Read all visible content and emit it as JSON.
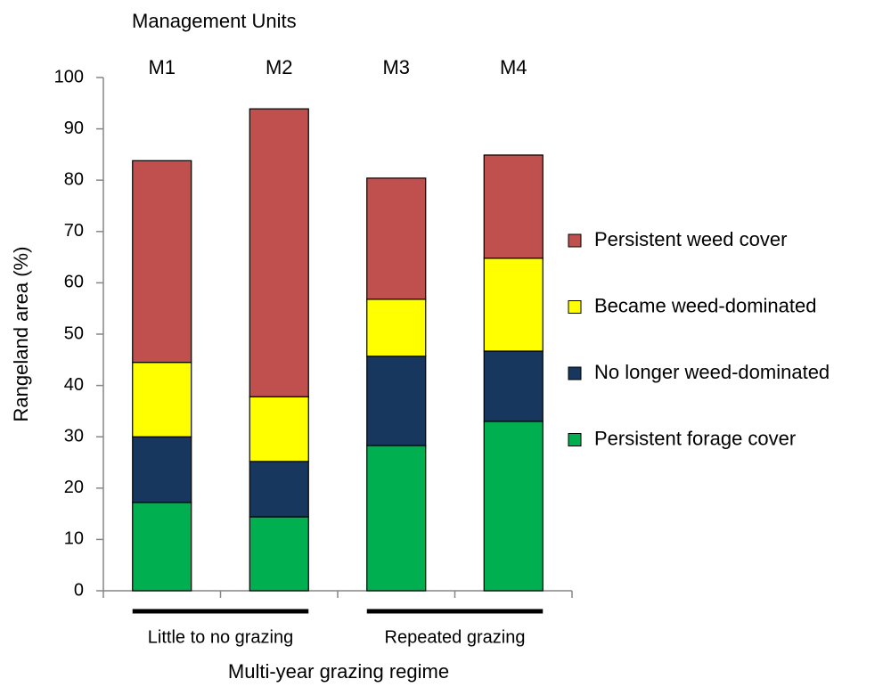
{
  "chart_data": {
    "type": "stacked_bar",
    "top_label": "Management Units",
    "categories": [
      "M1",
      "M2",
      "M3",
      "M4"
    ],
    "groups": [
      "Little to no grazing",
      "Repeated grazing"
    ],
    "xlabel": "Multi-year grazing regime",
    "ylabel": "Rangeland area (%)",
    "ylim": [
      0,
      100
    ],
    "yticks": [
      0,
      10,
      20,
      30,
      40,
      50,
      60,
      70,
      80,
      90,
      100
    ],
    "grid": false,
    "legend": "right",
    "series": [
      {
        "name": "Persistent forage cover",
        "color": "#00b050",
        "values": [
          17.2,
          14.4,
          28.3,
          33.0
        ]
      },
      {
        "name": "No longer weed-dominated",
        "color": "#17375e",
        "values": [
          12.8,
          10.8,
          17.4,
          13.7
        ]
      },
      {
        "name": "Became weed-dominated",
        "color": "#ffff00",
        "values": [
          14.5,
          12.6,
          11.1,
          18.1
        ]
      },
      {
        "name": "Persistent weed cover",
        "color": "#c0504d",
        "values": [
          39.3,
          56.1,
          23.6,
          20.1
        ]
      }
    ]
  }
}
